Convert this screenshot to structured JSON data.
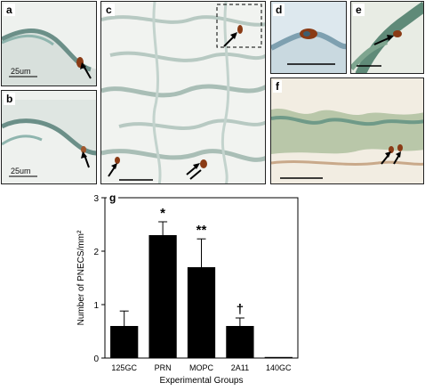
{
  "panels": {
    "a": {
      "label": "a",
      "scale": "25um"
    },
    "b": {
      "label": "b",
      "scale": "25um"
    },
    "c": {
      "label": "c"
    },
    "d": {
      "label": "d"
    },
    "e": {
      "label": "e"
    },
    "f": {
      "label": "f"
    },
    "g": {
      "label": "g"
    }
  },
  "colors": {
    "tissue_background": "#e9edea",
    "stain_blue": "#6fa3a0",
    "stain_brown": "#8a3b15",
    "bar_fill": "#000000"
  },
  "chart_data": {
    "type": "bar",
    "categories": [
      "125GC",
      "PRN",
      "MOPC",
      "2A11",
      "140GC"
    ],
    "values": [
      0.6,
      2.3,
      1.7,
      0.6,
      0.02
    ],
    "errors": [
      0.28,
      0.25,
      0.53,
      0.15,
      0.01
    ],
    "significance": [
      "",
      "*",
      "**",
      "†",
      ""
    ],
    "xlabel": "Experimental Groups",
    "ylabel": "Number of PNECS/mm²",
    "ylim": [
      0,
      3
    ],
    "yticks": [
      "0",
      "1",
      "2",
      "3"
    ],
    "grid": false,
    "legend": "none"
  }
}
